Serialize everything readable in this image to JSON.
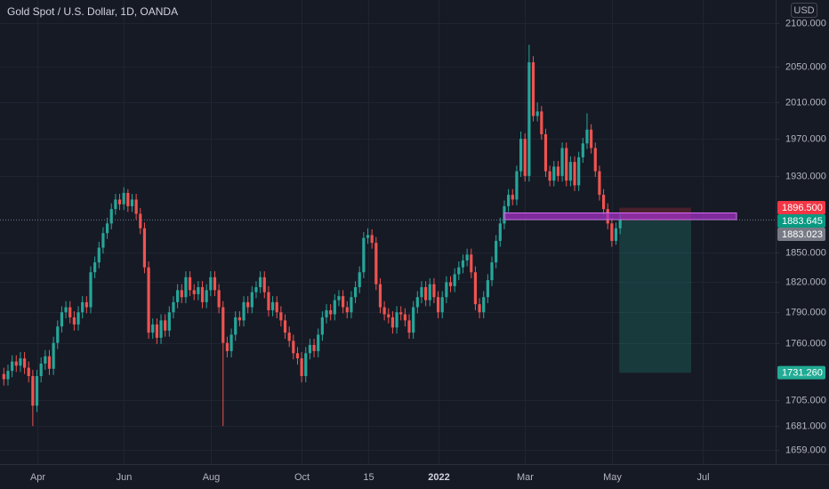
{
  "chart_data": {
    "type": "candlestick",
    "title": "Gold Spot / U.S. Dollar, 1D, OANDA",
    "currency": "USD",
    "log_scale": true,
    "grid": true,
    "up_color": "#26a69a",
    "down_color": "#ef5350",
    "categories": [
      null,
      null,
      null,
      null,
      null,
      null,
      null,
      null,
      "Apr",
      null,
      null,
      null,
      null,
      null,
      null,
      null,
      null,
      null,
      null,
      null,
      null,
      null,
      null,
      null,
      null,
      null,
      null,
      null,
      null,
      "Jun",
      null,
      null,
      null,
      null,
      null,
      null,
      null,
      null,
      null,
      null,
      null,
      null,
      null,
      null,
      null,
      null,
      null,
      null,
      null,
      null,
      "Aug",
      null,
      null,
      null,
      null,
      null,
      null,
      null,
      null,
      null,
      null,
      null,
      null,
      null,
      null,
      null,
      null,
      null,
      null,
      null,
      null,
      null,
      "Oct",
      null,
      null,
      null,
      null,
      null,
      null,
      null,
      null,
      null,
      null,
      null,
      null,
      null,
      null,
      null,
      "15",
      null,
      null,
      null,
      null,
      null,
      null,
      null,
      null,
      null,
      null,
      null,
      null,
      null,
      null,
      null,
      null,
      "2022",
      null,
      null,
      null,
      null,
      null,
      null,
      null,
      null,
      null,
      null,
      null,
      null,
      null,
      null,
      null,
      null,
      null,
      null,
      null,
      null,
      "Mar",
      null,
      null,
      null,
      null,
      null,
      null,
      null,
      null,
      null,
      null,
      null,
      null,
      null,
      null,
      null,
      null,
      null,
      null,
      null,
      null,
      "May",
      null,
      null,
      null,
      null,
      null,
      null,
      null,
      null,
      null,
      null,
      null,
      null,
      null,
      null,
      null,
      null,
      null,
      null,
      null,
      null,
      null,
      "Jul",
      null,
      null,
      null,
      null,
      null,
      null,
      null,
      null,
      null,
      null,
      null,
      null,
      null,
      null,
      null,
      null,
      null
    ],
    "open": [
      1730,
      1725,
      1733,
      1742,
      1738,
      1745,
      1736,
      1728,
      1700,
      1728,
      1740,
      1747,
      1735,
      1760,
      1776,
      1790,
      1795,
      1785,
      1778,
      1790,
      1800,
      1795,
      1830,
      1840,
      1855,
      1870,
      1880,
      1895,
      1905,
      1900,
      1912,
      1898,
      1905,
      1890,
      1875,
      1835,
      1770,
      1778,
      1765,
      1782,
      1772,
      1790,
      1800,
      1812,
      1805,
      1825,
      1812,
      1808,
      1815,
      1800,
      1812,
      1825,
      1812,
      1795,
      1760,
      1752,
      1768,
      1785,
      1782,
      1800,
      1795,
      1810,
      1815,
      1825,
      1810,
      1792,
      1800,
      1790,
      1782,
      1770,
      1762,
      1750,
      1745,
      1728,
      1750,
      1758,
      1752,
      1768,
      1785,
      1792,
      1788,
      1802,
      1806,
      1795,
      1790,
      1805,
      1815,
      1830,
      1865,
      1868,
      1860,
      1818,
      1795,
      1788,
      1785,
      1775,
      1790,
      1788,
      1782,
      1770,
      1795,
      1805,
      1815,
      1802,
      1818,
      1805,
      1790,
      1805,
      1820,
      1816,
      1828,
      1835,
      1842,
      1848,
      1830,
      1798,
      1790,
      1805,
      1822,
      1840,
      1862,
      1880,
      1898,
      1910,
      1905,
      1935,
      1970,
      1930,
      2055,
      1995,
      2000,
      1975,
      1935,
      1925,
      1940,
      1930,
      1960,
      1925,
      1945,
      1920,
      1950,
      1965,
      1980,
      1960,
      1935,
      1910,
      1895,
      1880,
      1862,
      1875,
      null,
      null,
      null,
      null,
      null,
      null,
      null,
      null,
      null,
      null,
      null,
      null,
      null,
      null,
      null,
      null,
      null,
      null,
      null,
      null,
      null,
      null,
      null,
      null,
      null,
      null,
      null,
      null,
      null,
      null,
      null,
      null,
      null,
      null,
      null,
      null,
      null
    ],
    "high": [
      1736,
      1739,
      1748,
      1748,
      1751,
      1751,
      1742,
      1734,
      1734,
      1746,
      1753,
      1753,
      1766,
      1782,
      1796,
      1801,
      1801,
      1791,
      1796,
      1806,
      1806,
      1836,
      1846,
      1861,
      1876,
      1886,
      1901,
      1911,
      1911,
      1918,
      1916,
      1911,
      1911,
      1896,
      1881,
      1841,
      1784,
      1784,
      1788,
      1788,
      1796,
      1806,
      1818,
      1818,
      1831,
      1831,
      1818,
      1821,
      1821,
      1818,
      1831,
      1831,
      1818,
      1801,
      1766,
      1774,
      1791,
      1791,
      1806,
      1806,
      1816,
      1821,
      1831,
      1831,
      1816,
      1806,
      1806,
      1796,
      1788,
      1776,
      1768,
      1756,
      1751,
      1756,
      1764,
      1764,
      1774,
      1791,
      1798,
      1798,
      1808,
      1812,
      1812,
      1801,
      1811,
      1821,
      1836,
      1871,
      1875,
      1874,
      1866,
      1824,
      1801,
      1794,
      1791,
      1796,
      1796,
      1794,
      1788,
      1801,
      1811,
      1821,
      1821,
      1824,
      1824,
      1811,
      1811,
      1826,
      1826,
      1834,
      1841,
      1848,
      1854,
      1854,
      1836,
      1804,
      1811,
      1828,
      1846,
      1868,
      1886,
      1904,
      1916,
      1916,
      1941,
      1978,
      1976,
      2075,
      2062,
      2010,
      2006,
      1981,
      1941,
      1946,
      1946,
      1966,
      1966,
      1951,
      1951,
      1956,
      1971,
      1998,
      1986,
      1966,
      1941,
      1916,
      1901,
      1886,
      1881,
      1890,
      null,
      null,
      null,
      null,
      null,
      null,
      null,
      null,
      null,
      null,
      null,
      null,
      null,
      null,
      null,
      null,
      null,
      null,
      null,
      null,
      null,
      null,
      null,
      null,
      null,
      null,
      null,
      null,
      null,
      null,
      null,
      null,
      null,
      null,
      null,
      null,
      null
    ],
    "low": [
      1719,
      1719,
      1727,
      1732,
      1732,
      1730,
      1722,
      1681,
      1694,
      1722,
      1734,
      1729,
      1729,
      1754,
      1770,
      1784,
      1779,
      1772,
      1772,
      1784,
      1789,
      1789,
      1824,
      1834,
      1849,
      1864,
      1874,
      1889,
      1894,
      1894,
      1892,
      1892,
      1884,
      1869,
      1829,
      1764,
      1764,
      1759,
      1759,
      1766,
      1766,
      1784,
      1794,
      1799,
      1799,
      1806,
      1802,
      1802,
      1794,
      1794,
      1806,
      1806,
      1789,
      1681,
      1746,
      1746,
      1762,
      1776,
      1776,
      1789,
      1789,
      1804,
      1809,
      1804,
      1786,
      1786,
      1784,
      1776,
      1764,
      1756,
      1744,
      1739,
      1722,
      1722,
      1744,
      1746,
      1746,
      1762,
      1779,
      1782,
      1782,
      1796,
      1789,
      1784,
      1784,
      1799,
      1809,
      1824,
      1859,
      1854,
      1812,
      1789,
      1782,
      1779,
      1769,
      1769,
      1782,
      1776,
      1764,
      1764,
      1789,
      1799,
      1796,
      1796,
      1799,
      1784,
      1784,
      1799,
      1810,
      1810,
      1822,
      1829,
      1836,
      1824,
      1792,
      1784,
      1784,
      1799,
      1816,
      1834,
      1856,
      1874,
      1892,
      1899,
      1899,
      1929,
      1924,
      1924,
      1989,
      1989,
      1969,
      1929,
      1919,
      1919,
      1924,
      1924,
      1919,
      1919,
      1914,
      1914,
      1944,
      1959,
      1954,
      1929,
      1904,
      1889,
      1874,
      1856,
      1858,
      1869,
      null,
      null,
      null,
      null,
      null,
      null,
      null,
      null,
      null,
      null,
      null,
      null,
      null,
      null,
      null,
      null,
      null,
      null,
      null,
      null,
      null,
      null,
      null,
      null,
      null,
      null,
      null,
      null,
      null,
      null,
      null,
      null,
      null,
      null,
      null,
      null,
      null
    ],
    "close": [
      1725,
      1733,
      1742,
      1738,
      1745,
      1736,
      1728,
      1700,
      1728,
      1740,
      1747,
      1735,
      1760,
      1776,
      1790,
      1795,
      1785,
      1778,
      1790,
      1800,
      1795,
      1830,
      1840,
      1855,
      1870,
      1880,
      1895,
      1905,
      1900,
      1912,
      1898,
      1905,
      1890,
      1875,
      1835,
      1770,
      1778,
      1765,
      1782,
      1772,
      1790,
      1800,
      1812,
      1805,
      1825,
      1812,
      1808,
      1815,
      1800,
      1812,
      1825,
      1812,
      1795,
      1760,
      1752,
      1768,
      1785,
      1782,
      1800,
      1795,
      1810,
      1815,
      1825,
      1810,
      1792,
      1800,
      1790,
      1782,
      1770,
      1762,
      1750,
      1745,
      1728,
      1750,
      1758,
      1752,
      1768,
      1785,
      1792,
      1788,
      1802,
      1806,
      1795,
      1790,
      1805,
      1815,
      1830,
      1865,
      1868,
      1860,
      1818,
      1795,
      1788,
      1785,
      1775,
      1790,
      1788,
      1782,
      1770,
      1795,
      1805,
      1815,
      1802,
      1818,
      1805,
      1790,
      1805,
      1820,
      1816,
      1828,
      1835,
      1842,
      1848,
      1830,
      1798,
      1790,
      1805,
      1822,
      1840,
      1862,
      1880,
      1898,
      1910,
      1905,
      1935,
      1970,
      1930,
      2055,
      1995,
      2000,
      1975,
      1935,
      1925,
      1940,
      1930,
      1960,
      1925,
      1945,
      1920,
      1950,
      1965,
      1980,
      1960,
      1935,
      1910,
      1895,
      1880,
      1862,
      1875,
      1883.645,
      null,
      null,
      null,
      null,
      null,
      null,
      null,
      null,
      null,
      null,
      null,
      null,
      null,
      null,
      null,
      null,
      null,
      null,
      null,
      null,
      null,
      null,
      null,
      null,
      null,
      null,
      null,
      null,
      null,
      null,
      null,
      null,
      null,
      null,
      null,
      null,
      null
    ],
    "last_price_label": "1883.645",
    "ylim": [
      1646,
      2127
    ],
    "yticks": [
      {
        "value": 2100,
        "label": "2100.000"
      },
      {
        "value": 2050,
        "label": "2050.000"
      },
      {
        "value": 2010,
        "label": "2010.000"
      },
      {
        "value": 1970,
        "label": "1970.000"
      },
      {
        "value": 1930,
        "label": "1930.000"
      },
      {
        "value": 1850,
        "label": "1850.000"
      },
      {
        "value": 1820,
        "label": "1820.000"
      },
      {
        "value": 1790,
        "label": "1790.000"
      },
      {
        "value": 1760,
        "label": "1760.000"
      },
      {
        "value": 1705,
        "label": "1705.000"
      },
      {
        "value": 1681,
        "label": "1681.000"
      },
      {
        "value": 1659,
        "label": "1659.000"
      }
    ],
    "position": {
      "stop": {
        "value": 1896.5,
        "label": "1896.500",
        "color": "#f23645"
      },
      "entry": {
        "value": 1883.023,
        "label": "1883.023",
        "color": "#787b86"
      },
      "target": {
        "value": 1731.26,
        "label": "1731.260",
        "color": "#22ab94"
      }
    },
    "last_price_color": "#089981",
    "support_zone": [
      1884,
      1891
    ],
    "support_color": "#a331c4"
  }
}
